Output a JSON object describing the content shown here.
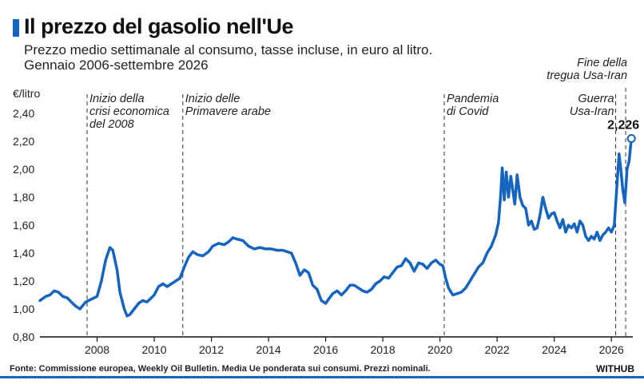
{
  "header": {
    "title": "Il prezzo del gasolio nell'Ue",
    "subtitle_line1": "Prezzo medio settimanale al consumo, tasse incluse, in euro al litro.",
    "subtitle_line2": "Gennaio 2006-settembre 2026"
  },
  "footer": {
    "source": "Fonte: Commissione europea, Weekly Oil Bulletin. Media Ue ponderata sui consumi. Prezzi nominali.",
    "brand": "WITHUB"
  },
  "colors": {
    "line": "#1565c0",
    "accent": "#1565c0"
  },
  "chart_data": {
    "type": "line",
    "title": "Il prezzo del gasolio nell'Ue",
    "xlabel": "",
    "ylabel": "€/litro",
    "xlim": [
      2006.0,
      2026.75
    ],
    "ylim": [
      0.8,
      2.4
    ],
    "grid": false,
    "x_ticks": [
      2008,
      2010,
      2012,
      2014,
      2016,
      2018,
      2020,
      2022,
      2024,
      2026
    ],
    "x_tick_labels": [
      "2008",
      "2010",
      "2012",
      "2014",
      "2016",
      "2018",
      "2020",
      "2022",
      "2024",
      "2026"
    ],
    "y_ticks": [
      0.8,
      1.0,
      1.2,
      1.4,
      1.6,
      1.8,
      2.0,
      2.2,
      2.4
    ],
    "y_tick_labels": [
      "0,80",
      "1,00",
      "1,20",
      "1,40",
      "1,60",
      "1,80",
      "2,00",
      "2,20",
      "2,40"
    ],
    "series": [
      {
        "name": "",
        "x": [
          2006.0,
          2006.2,
          2006.35,
          2006.5,
          2006.65,
          2006.8,
          2006.95,
          2007.1,
          2007.25,
          2007.4,
          2007.6,
          2007.8,
          2008.0,
          2008.15,
          2008.3,
          2008.45,
          2008.55,
          2008.7,
          2008.8,
          2008.95,
          2009.05,
          2009.15,
          2009.3,
          2009.45,
          2009.6,
          2009.75,
          2009.9,
          2010.0,
          2010.15,
          2010.3,
          2010.45,
          2010.6,
          2010.75,
          2010.9,
          2011.05,
          2011.2,
          2011.35,
          2011.5,
          2011.7,
          2011.9,
          2012.05,
          2012.25,
          2012.45,
          2012.6,
          2012.75,
          2012.9,
          2013.1,
          2013.3,
          2013.5,
          2013.7,
          2013.9,
          2014.1,
          2014.3,
          2014.5,
          2014.65,
          2014.8,
          2014.95,
          2015.1,
          2015.25,
          2015.4,
          2015.55,
          2015.7,
          2015.85,
          2016.0,
          2016.1,
          2016.25,
          2016.4,
          2016.55,
          2016.7,
          2016.85,
          2017.0,
          2017.15,
          2017.3,
          2017.45,
          2017.6,
          2017.75,
          2017.9,
          2018.05,
          2018.2,
          2018.35,
          2018.5,
          2018.65,
          2018.8,
          2018.95,
          2019.1,
          2019.25,
          2019.4,
          2019.55,
          2019.7,
          2019.85,
          2020.0,
          2020.1,
          2020.2,
          2020.3,
          2020.45,
          2020.6,
          2020.75,
          2020.9,
          2021.05,
          2021.2,
          2021.35,
          2021.5,
          2021.65,
          2021.8,
          2021.95,
          2022.05,
          2022.12,
          2022.18,
          2022.25,
          2022.32,
          2022.4,
          2022.48,
          2022.55,
          2022.62,
          2022.7,
          2022.8,
          2022.9,
          2023.0,
          2023.1,
          2023.2,
          2023.3,
          2023.4,
          2023.5,
          2023.6,
          2023.7,
          2023.8,
          2023.9,
          2024.0,
          2024.1,
          2024.2,
          2024.3,
          2024.4,
          2024.5,
          2024.6,
          2024.7,
          2024.8,
          2024.9,
          2025.0,
          2025.1,
          2025.2,
          2025.3,
          2025.4,
          2025.5,
          2025.6,
          2025.7,
          2025.8,
          2025.9,
          2026.0,
          2026.1,
          2026.2,
          2026.27,
          2026.33,
          2026.4,
          2026.47,
          2026.55,
          2026.62,
          2026.7
        ],
        "values": [
          1.06,
          1.09,
          1.1,
          1.13,
          1.12,
          1.09,
          1.08,
          1.05,
          1.02,
          1.0,
          1.05,
          1.07,
          1.09,
          1.2,
          1.35,
          1.44,
          1.42,
          1.28,
          1.12,
          1.0,
          0.95,
          0.96,
          1.0,
          1.04,
          1.06,
          1.05,
          1.08,
          1.1,
          1.16,
          1.18,
          1.16,
          1.18,
          1.2,
          1.22,
          1.3,
          1.37,
          1.41,
          1.39,
          1.38,
          1.41,
          1.45,
          1.47,
          1.46,
          1.48,
          1.51,
          1.5,
          1.49,
          1.45,
          1.43,
          1.44,
          1.43,
          1.43,
          1.42,
          1.42,
          1.41,
          1.4,
          1.33,
          1.24,
          1.28,
          1.26,
          1.17,
          1.14,
          1.06,
          1.04,
          1.07,
          1.11,
          1.13,
          1.1,
          1.13,
          1.17,
          1.17,
          1.15,
          1.13,
          1.12,
          1.14,
          1.18,
          1.2,
          1.23,
          1.22,
          1.26,
          1.3,
          1.31,
          1.36,
          1.33,
          1.27,
          1.33,
          1.32,
          1.29,
          1.33,
          1.35,
          1.32,
          1.31,
          1.22,
          1.15,
          1.1,
          1.11,
          1.12,
          1.15,
          1.2,
          1.25,
          1.3,
          1.33,
          1.4,
          1.45,
          1.53,
          1.62,
          1.8,
          2.01,
          1.78,
          1.98,
          1.8,
          1.95,
          1.85,
          1.75,
          1.96,
          1.8,
          1.74,
          1.72,
          1.6,
          1.63,
          1.57,
          1.58,
          1.67,
          1.8,
          1.72,
          1.65,
          1.68,
          1.69,
          1.63,
          1.58,
          1.64,
          1.55,
          1.6,
          1.58,
          1.61,
          1.55,
          1.63,
          1.6,
          1.52,
          1.49,
          1.52,
          1.5,
          1.55,
          1.49,
          1.53,
          1.55,
          1.58,
          1.55,
          1.6,
          1.9,
          2.11,
          2.0,
          1.85,
          1.76,
          2.0,
          2.06,
          2.22
        ]
      }
    ],
    "annotations": [
      {
        "x": 2007.65,
        "line1": "Inizio della",
        "line2": "crisi economica",
        "line3": "del 2008"
      },
      {
        "x": 2011.0,
        "line1": "Inizio delle",
        "line2": "Primavere arabe",
        "line3": ""
      },
      {
        "x": 2020.15,
        "line1": "Pandemia",
        "line2": "di Covid",
        "line3": ""
      },
      {
        "x": 2026.15,
        "line1": "Guerra",
        "line2": "Usa-Iran",
        "line3": ""
      },
      {
        "x": 2026.5,
        "line1": "Fine della",
        "line2": "tregua Usa-Iran",
        "line3": ""
      }
    ],
    "last_value_label": "2,226"
  }
}
